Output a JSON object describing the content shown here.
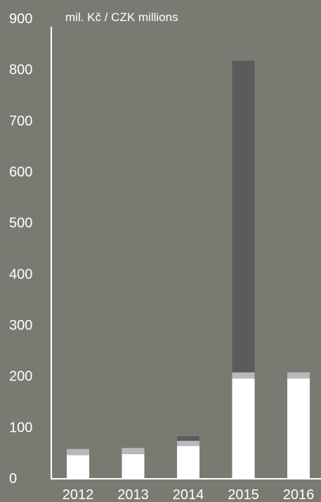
{
  "chart_data": {
    "type": "bar",
    "stacked": true,
    "title": "",
    "unit_label": "mil. Kč / CZK millions",
    "xlabel": "",
    "ylabel": "",
    "categories": [
      "2012",
      "2013",
      "2014",
      "2015",
      "2016"
    ],
    "series": [
      {
        "values": [
          45,
          47,
          63,
          195,
          195
        ],
        "color": "#ffffff"
      },
      {
        "values": [
          12,
          12,
          10,
          12,
          12
        ],
        "color": "#b9b9bb"
      },
      {
        "values": [
          0,
          0,
          9,
          610,
          0
        ],
        "color": "#5a5b5b"
      }
    ],
    "yticks": [
      0,
      100,
      200,
      300,
      400,
      500,
      600,
      700,
      800,
      900
    ],
    "ylim": [
      0,
      900
    ],
    "grid": false,
    "colors": {
      "background": "#7b7a72",
      "axis": "#ffffff"
    }
  }
}
